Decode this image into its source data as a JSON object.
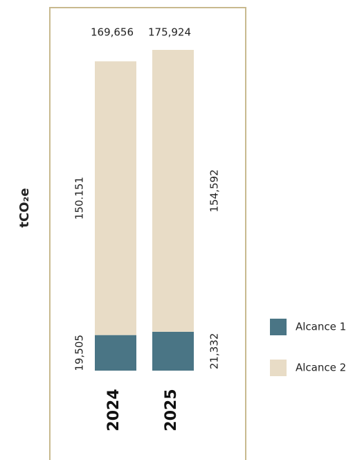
{
  "chart_data": {
    "type": "stacked_bar",
    "y_label": "tCO₂e",
    "categories": [
      "2024",
      "2025"
    ],
    "series": [
      {
        "name": "Alcance 1",
        "color": "#4a7585",
        "values": [
          19505,
          21332
        ],
        "value_labels": [
          "19,505",
          "21,332"
        ]
      },
      {
        "name": "Alcance 2",
        "color": "#e8dcc6",
        "values": [
          150151,
          154592
        ],
        "value_labels": [
          "150.151",
          "154,592"
        ]
      }
    ],
    "totals": [
      169656,
      175924
    ],
    "total_labels": [
      "169,656",
      "175,924"
    ],
    "legend": "right"
  }
}
